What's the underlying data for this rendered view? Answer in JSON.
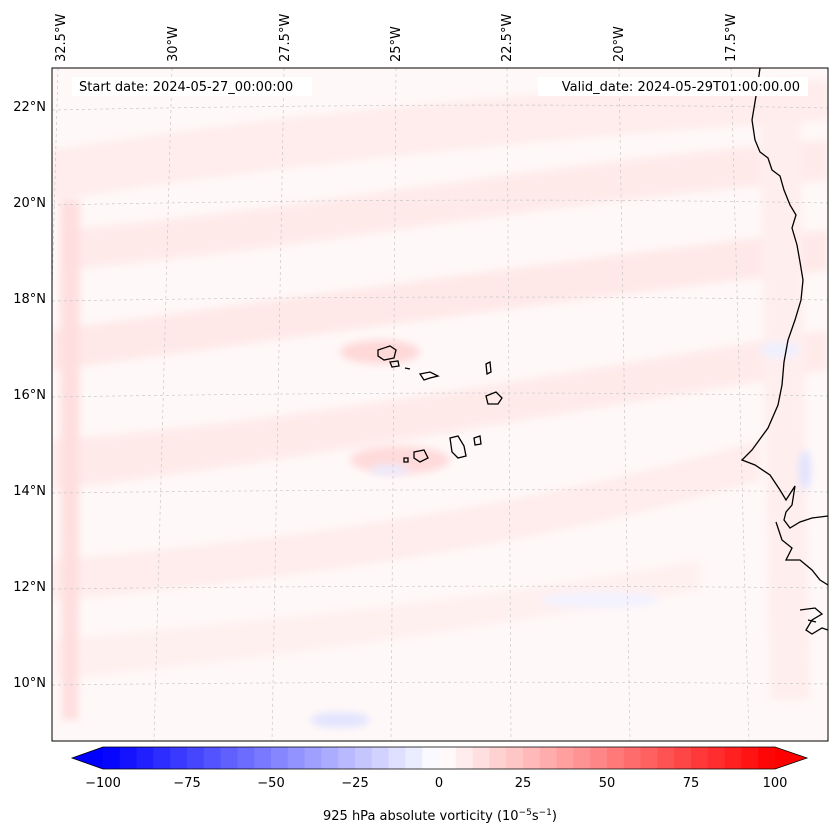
{
  "map": {
    "start_date_text": "Start date: 2024-05-27_00:00:00",
    "valid_date_text": "Valid_date: 2024-05-29T01:00:00.00",
    "lon_labels": [
      "32.5°W",
      "30°W",
      "27.5°W",
      "25°W",
      "22.5°W",
      "20°W",
      "17.5°W"
    ],
    "lat_labels": [
      "22°N",
      "20°N",
      "18°N",
      "16°N",
      "14°N",
      "12°N",
      "10°N"
    ],
    "gridlines": true,
    "coastline_color": "#000000"
  },
  "colorbar": {
    "ticks": [
      "−100",
      "−75",
      "−50",
      "−25",
      "0",
      "25",
      "50",
      "75",
      "100"
    ],
    "label_main": "925 hPa absolute vorticity (10",
    "label_exp1": "−5",
    "label_mid": "s",
    "label_exp2": "−1",
    "label_end": ")",
    "min": -100,
    "max": 100,
    "step": 5,
    "colormap": "bwr",
    "extend": "both"
  }
}
